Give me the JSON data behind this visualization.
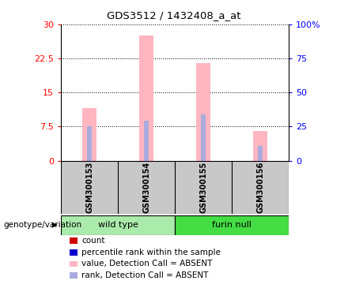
{
  "title": "GDS3512 / 1432408_a_at",
  "samples": [
    "GSM300153",
    "GSM300154",
    "GSM300155",
    "GSM300156"
  ],
  "bar_values": [
    11.5,
    27.5,
    21.5,
    6.5
  ],
  "rank_values_pct": [
    25.0,
    29.0,
    34.0,
    11.0
  ],
  "bar_color_absent": "#FFB6C1",
  "rank_color_absent": "#AAAADD",
  "left_yticks": [
    0,
    7.5,
    15,
    22.5,
    30
  ],
  "right_yticks": [
    0,
    25,
    50,
    75,
    100
  ],
  "right_yticklabels": [
    "0",
    "25",
    "50",
    "75",
    "100%"
  ],
  "ylim": [
    0,
    30
  ],
  "right_ylim": [
    0,
    100
  ],
  "label_area_color": "#C8C8C8",
  "group_label_wt": "wild type",
  "group_label_fn": "furin null",
  "group_color_wt": "#AAEAAA",
  "group_color_fn": "#44DD44",
  "genotype_label": "genotype/variation",
  "legend_items": [
    {
      "label": "count",
      "color": "#CC0000"
    },
    {
      "label": "percentile rank within the sample",
      "color": "#0000CC"
    },
    {
      "label": "value, Detection Call = ABSENT",
      "color": "#FFB6C1"
    },
    {
      "label": "rank, Detection Call = ABSENT",
      "color": "#AAAADD"
    }
  ]
}
